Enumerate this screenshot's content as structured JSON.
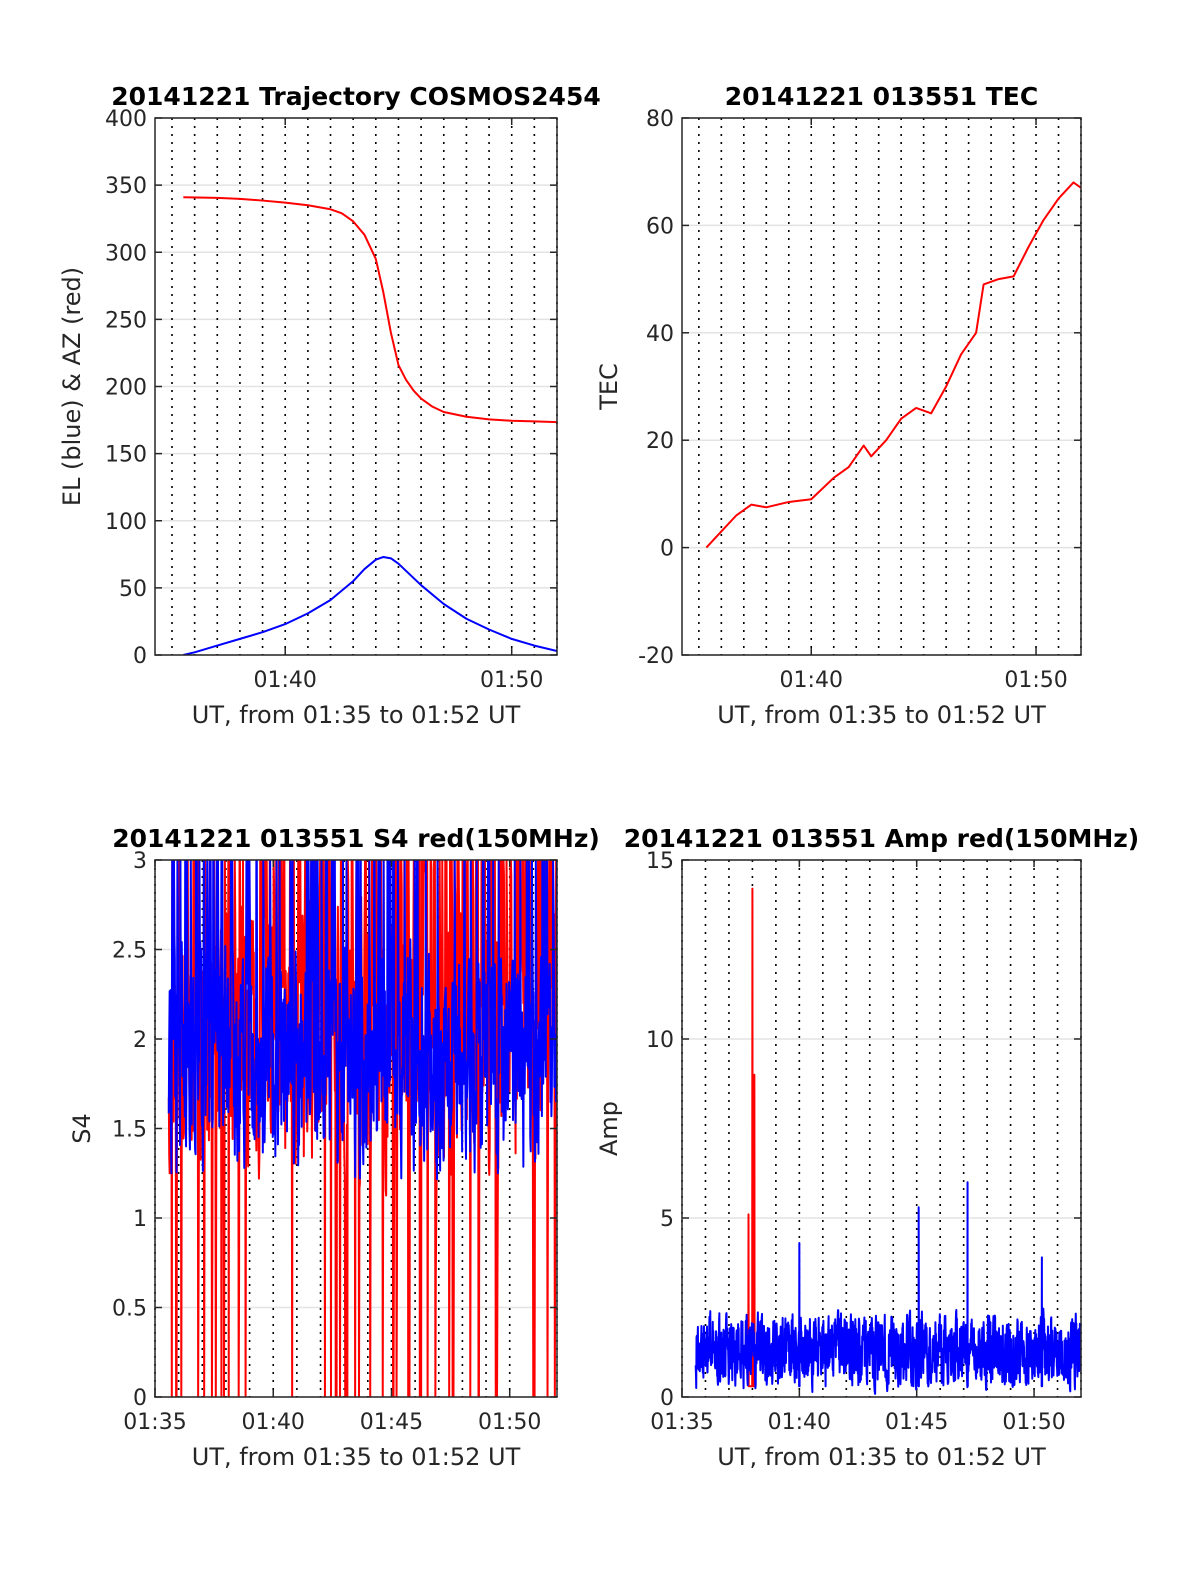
{
  "chart_data": [
    {
      "type": "line",
      "title": "20141221 Trajectory COSMOS2454",
      "xlabel": "UT, from 01:35 to 01:52 UT",
      "ylabel": "EL (blue) & AZ (red)",
      "x_unit": "minutes (UT clock)",
      "xlim": [
        "01:34:15",
        "01:52:00"
      ],
      "ylim": [
        0,
        400
      ],
      "yticks": [
        "0",
        "50",
        "100",
        "150",
        "200",
        "250",
        "300",
        "350",
        "400"
      ],
      "xticks": [
        {
          "t": "01:40",
          "label": "01:40"
        },
        {
          "t": "01:50",
          "label": "01:50"
        }
      ],
      "grid": "dotted vertical every minute, solid horizontal",
      "series": [
        {
          "color": "#ff0000",
          "points": [
            [
              "01:35:30",
              341
            ],
            [
              "01:37",
              340.5
            ],
            [
              "01:38",
              339.8
            ],
            [
              "01:39",
              338.5
            ],
            [
              "01:40",
              337
            ],
            [
              "01:41",
              335
            ],
            [
              "01:42",
              332
            ],
            [
              "01:42:30",
              329
            ],
            [
              "01:43",
              323
            ],
            [
              "01:43:30",
              313
            ],
            [
              "01:44",
              295
            ],
            [
              "01:44:20",
              270
            ],
            [
              "01:44:40",
              240
            ],
            [
              "01:45",
              216
            ],
            [
              "01:45:20",
              205
            ],
            [
              "01:45:40",
              197
            ],
            [
              "01:46",
              191
            ],
            [
              "01:46:30",
              185
            ],
            [
              "01:47",
              181
            ],
            [
              "01:48",
              177.5
            ],
            [
              "01:49",
              175.5
            ],
            [
              "01:50",
              174.5
            ],
            [
              "01:51",
              174
            ],
            [
              "01:52",
              173.5
            ]
          ]
        },
        {
          "color": "#0000ff",
          "points": [
            [
              "01:35:30",
              0
            ],
            [
              "01:36",
              2
            ],
            [
              "01:37",
              7
            ],
            [
              "01:38",
              12
            ],
            [
              "01:39",
              17
            ],
            [
              "01:40",
              23
            ],
            [
              "01:41",
              31
            ],
            [
              "01:42",
              41
            ],
            [
              "01:43",
              55
            ],
            [
              "01:43:30",
              64
            ],
            [
              "01:44",
              71
            ],
            [
              "01:44:20",
              73
            ],
            [
              "01:44:40",
              72
            ],
            [
              "01:45",
              68
            ],
            [
              "01:45:30",
              60
            ],
            [
              "01:46",
              52
            ],
            [
              "01:47",
              38
            ],
            [
              "01:48",
              27
            ],
            [
              "01:49",
              19
            ],
            [
              "01:50",
              12
            ],
            [
              "01:51",
              7
            ],
            [
              "01:52",
              3
            ]
          ]
        }
      ]
    },
    {
      "type": "line",
      "title": "20141221 013551 TEC",
      "xlabel": "UT, from 01:35 to 01:52 UT",
      "ylabel": "TEC",
      "x_unit": "minutes (UT clock)",
      "xlim": [
        "01:34:15",
        "01:52:00"
      ],
      "ylim": [
        -20,
        80
      ],
      "yticks": [
        "-20",
        "0",
        "20",
        "40",
        "60",
        "80"
      ],
      "xticks": [
        {
          "t": "01:40",
          "label": "01:40"
        },
        {
          "t": "01:50",
          "label": "01:50"
        }
      ],
      "grid": "dotted vertical every minute, solid horizontal",
      "series": [
        {
          "color": "#ff0000",
          "points": [
            [
              "01:35:20",
              0
            ],
            [
              "01:36",
              3
            ],
            [
              "01:36:40",
              6
            ],
            [
              "01:37:20",
              8
            ],
            [
              "01:38",
              7.5
            ],
            [
              "01:39",
              8.5
            ],
            [
              "01:40",
              9
            ],
            [
              "01:41",
              13
            ],
            [
              "01:41:40",
              15
            ],
            [
              "01:42:20",
              19
            ],
            [
              "01:42:40",
              17
            ],
            [
              "01:43:20",
              20
            ],
            [
              "01:44",
              24
            ],
            [
              "01:44:40",
              26
            ],
            [
              "01:45:20",
              25
            ],
            [
              "01:46",
              30
            ],
            [
              "01:46:40",
              36
            ],
            [
              "01:47:20",
              40
            ],
            [
              "01:47:40",
              49
            ],
            [
              "01:48:20",
              50
            ],
            [
              "01:49",
              50.5
            ],
            [
              "01:49:40",
              56
            ],
            [
              "01:50:20",
              61
            ],
            [
              "01:51",
              65
            ],
            [
              "01:51:40",
              68
            ],
            [
              "01:52",
              67
            ]
          ]
        }
      ]
    },
    {
      "type": "line",
      "title": "20141221 013551 S4 red(150MHz)",
      "xlabel": "UT, from 01:35 to 01:52 UT",
      "ylabel": "S4",
      "x_unit": "minutes (UT clock)",
      "xlim": [
        "01:35:00",
        "01:52:00"
      ],
      "ylim": [
        0,
        3
      ],
      "yticks": [
        "0",
        "0.5",
        "1",
        "1.5",
        "2",
        "2.5",
        "3"
      ],
      "xticks": [
        {
          "t": "01:35",
          "label": "01:35"
        },
        {
          "t": "01:40",
          "label": "01:40"
        },
        {
          "t": "01:45",
          "label": "01:45"
        },
        {
          "t": "01:50",
          "label": "01:50"
        }
      ],
      "grid": "dotted vertical every minute, solid horizontal",
      "series": [
        {
          "color": "#ff0000",
          "noise": {
            "t0": "01:35:35",
            "t1": "01:52:00",
            "base": 2.0,
            "amp": 0.9,
            "min": 0,
            "max": 3,
            "clipTopProb": 0.22,
            "dropProb": 0.05,
            "seed": 11,
            "n": 900
          }
        },
        {
          "color": "#0000ff",
          "noise": {
            "t0": "01:35:35",
            "t1": "01:52:00",
            "base": 1.85,
            "amp": 0.75,
            "min": 0.8,
            "max": 3,
            "clipTopProb": 0.12,
            "dropProb": 0.0,
            "seed": 29,
            "n": 900
          }
        }
      ]
    },
    {
      "type": "line",
      "title": "20141221 013551 Amp red(150MHz)",
      "xlabel": "UT, from 01:35 to 01:52 UT",
      "ylabel": "Amp",
      "x_unit": "minutes (UT clock)",
      "xlim": [
        "01:35:00",
        "01:52:00"
      ],
      "ylim": [
        0,
        15
      ],
      "yticks": [
        "0",
        "5",
        "10",
        "15"
      ],
      "xticks": [
        {
          "t": "01:35",
          "label": "01:35"
        },
        {
          "t": "01:40",
          "label": "01:40"
        },
        {
          "t": "01:45",
          "label": "01:45"
        },
        {
          "t": "01:50",
          "label": "01:50"
        }
      ],
      "grid": "dotted vertical every minute, solid horizontal",
      "series": [
        {
          "color": "#ff0000",
          "spikes": [
            [
              "01:37:50",
              5.1
            ],
            [
              "01:38:00",
              14.2
            ],
            [
              "01:38:05",
              9.0
            ]
          ]
        },
        {
          "color": "#0000ff",
          "noise": {
            "t0": "01:35:35",
            "t1": "01:52:00",
            "base": 1.3,
            "amp": 1.2,
            "min": 0,
            "max": 3.8,
            "clipTopProb": 0.0,
            "dropProb": 0.0,
            "seed": 41,
            "n": 1400
          },
          "spikes": [
            [
              "01:40:00",
              4.3
            ],
            [
              "01:45:05",
              5.3
            ],
            [
              "01:47:10",
              6.0
            ],
            [
              "01:50:20",
              3.9
            ]
          ]
        }
      ]
    }
  ]
}
